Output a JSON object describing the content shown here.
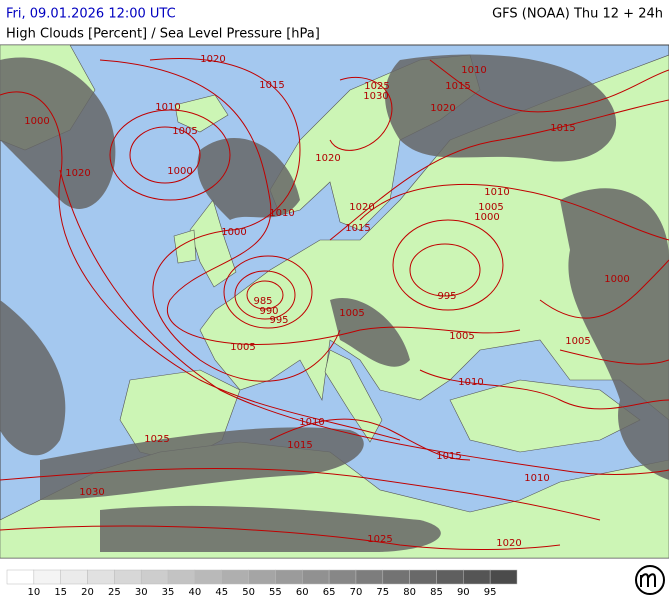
{
  "header": {
    "datetime": "Fri, 09.01.2026 12:00 UTC",
    "model": "GFS (NOAA) Thu 12 + 24h",
    "title": "High Clouds [Percent] / Sea Level Pressure [hPa]"
  },
  "isobar_labels": [
    "1020",
    "1015",
    "1010",
    "1000",
    "1005",
    "1000",
    "1020",
    "1025",
    "1030",
    "1010",
    "1015",
    "1020",
    "1015",
    "1020",
    "1010",
    "1020",
    "1015",
    "1010",
    "1005",
    "1000",
    "1000",
    "985",
    "990",
    "995",
    "995",
    "1005",
    "1005",
    "1005",
    "1000",
    "1005",
    "1010",
    "1010",
    "1015",
    "1025",
    "1015",
    "1010",
    "1030",
    "1025",
    "1020"
  ],
  "legend": {
    "ticks": [
      10,
      15,
      20,
      25,
      30,
      35,
      40,
      45,
      50,
      55,
      60,
      65,
      70,
      75,
      80,
      85,
      90,
      95
    ],
    "colors": [
      "#ffffff",
      "#f4f4f4",
      "#ebebeb",
      "#e1e1e1",
      "#d7d7d7",
      "#cdcdcd",
      "#c3c3c3",
      "#b9b9b9",
      "#afafaf",
      "#a5a5a5",
      "#9b9b9b",
      "#919191",
      "#878787",
      "#7d7d7d",
      "#737373",
      "#696969",
      "#5f5f5f",
      "#555555",
      "#4b4b4b"
    ]
  }
}
